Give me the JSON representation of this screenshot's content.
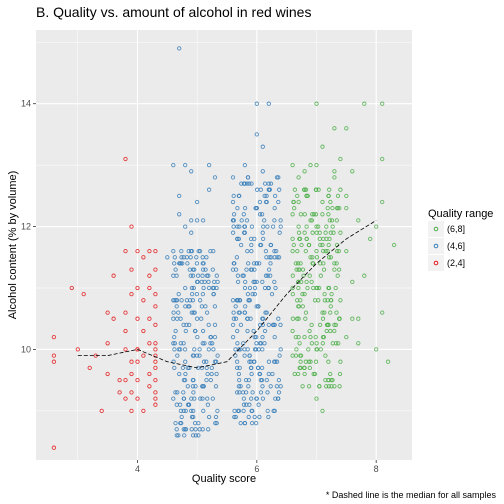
{
  "chart_data": {
    "type": "scatter",
    "title": "B. Quality vs. amount of alcohol in red wines",
    "xlabel": "Quality score",
    "ylabel": "Alcohol content (% by volume)",
    "caption": "* Dashed line is the median for all samples",
    "xlim": [
      2.3,
      8.6
    ],
    "ylim": [
      8.2,
      15.2
    ],
    "x_ticks": [
      4,
      6,
      8
    ],
    "y_ticks": [
      10,
      12,
      14
    ],
    "grid": true,
    "jitter": "points horizontally jittered around integer quality scores",
    "legend": {
      "title": "Quality range",
      "position": "right",
      "entries": [
        {
          "label": "(6,8]",
          "color": "#4daf4a"
        },
        {
          "label": "(4,6]",
          "color": "#377eb8"
        },
        {
          "label": "(2,4]",
          "color": "#e41a1c"
        }
      ]
    },
    "series": [
      {
        "label": "(2,4]",
        "color": "#e41a1c",
        "points": [
          [
            2.6,
            8.4
          ],
          [
            2.6,
            9.8
          ],
          [
            2.6,
            9.9
          ],
          [
            2.6,
            10.2
          ],
          [
            2.9,
            11.0
          ],
          [
            3.0,
            10.0
          ],
          [
            3.1,
            10.9
          ],
          [
            3.2,
            9.7
          ],
          [
            3.3,
            9.9
          ],
          [
            3.4,
            9.0
          ],
          [
            3.5,
            10.1
          ],
          [
            3.5,
            9.6
          ],
          [
            3.5,
            10.6
          ],
          [
            3.6,
            10.5
          ],
          [
            3.6,
            11.2
          ],
          [
            3.7,
            9.5
          ],
          [
            3.7,
            9.3
          ],
          [
            3.8,
            9.2
          ],
          [
            3.8,
            9.5
          ],
          [
            3.8,
            13.1
          ],
          [
            3.8,
            10.0
          ],
          [
            3.8,
            10.3
          ],
          [
            3.8,
            10.6
          ],
          [
            3.8,
            11.6
          ],
          [
            3.9,
            9.0
          ],
          [
            3.9,
            9.3
          ],
          [
            3.9,
            10.9
          ],
          [
            3.9,
            11.3
          ],
          [
            3.9,
            9.8
          ],
          [
            4.0,
            9.2
          ],
          [
            4.0,
            9.5
          ],
          [
            4.0,
            10.0
          ],
          [
            4.0,
            10.5
          ],
          [
            4.0,
            11.0
          ],
          [
            4.0,
            11.6
          ],
          [
            4.0,
            10.0
          ],
          [
            4.0,
            9.8
          ],
          [
            4.1,
            10.3
          ],
          [
            4.1,
            9.0
          ],
          [
            4.1,
            9.9
          ],
          [
            4.1,
            11.5
          ],
          [
            4.1,
            10.8
          ],
          [
            4.2,
            9.6
          ],
          [
            4.2,
            10.1
          ],
          [
            4.2,
            11.2
          ],
          [
            4.2,
            9.4
          ],
          [
            4.2,
            10.5
          ],
          [
            4.2,
            11.0
          ],
          [
            4.3,
            9.9
          ],
          [
            4.3,
            10.4
          ],
          [
            4.3,
            9.5
          ],
          [
            4.3,
            10.7
          ],
          [
            4.3,
            11.3
          ],
          [
            4.3,
            9.2
          ],
          [
            4.3,
            10.1
          ],
          [
            4.3,
            11.6
          ],
          [
            4.3,
            10.0
          ],
          [
            4.3,
            9.7
          ],
          [
            4.3,
            9.3
          ],
          [
            4.3,
            10.9
          ],
          [
            3.9,
            12.0
          ],
          [
            4.2,
            11.6
          ],
          [
            3.9,
            9.6
          ],
          [
            4.3,
            9.1
          ],
          [
            4.3,
            9.8
          ]
        ]
      },
      {
        "label": "(4,6]",
        "color": "#377eb8",
        "points": [
          [
            4.7,
            14.9
          ],
          [
            4.6,
            13.0
          ],
          [
            4.8,
            13.0
          ],
          [
            4.9,
            12.9
          ],
          [
            4.8,
            12.0
          ],
          [
            4.9,
            11.9
          ],
          [
            4.6,
            11.6
          ],
          [
            4.5,
            11.5
          ],
          [
            4.6,
            11.2
          ],
          [
            4.7,
            11.4
          ],
          [
            4.8,
            11.0
          ],
          [
            5.0,
            11.1
          ],
          [
            5.1,
            11.3
          ],
          [
            5.2,
            11.0
          ],
          [
            4.6,
            10.8
          ],
          [
            5.0,
            10.5
          ],
          [
            5.3,
            10.4
          ],
          [
            5.1,
            10.3
          ],
          [
            5.3,
            10.2
          ],
          [
            4.6,
            10.1
          ],
          [
            5.1,
            12.1
          ],
          [
            5.2,
            13.0
          ],
          [
            4.7,
            12.5
          ],
          [
            4.9,
            12.1
          ],
          [
            5.0,
            12.4
          ],
          [
            4.7,
            12.2
          ],
          [
            5.2,
            12.6
          ],
          [
            5.0,
            12.1
          ],
          [
            5.3,
            12.8
          ],
          [
            6.0,
            14.0
          ],
          [
            6.2,
            14.0
          ],
          [
            6.0,
            13.5
          ],
          [
            6.1,
            13.3
          ],
          [
            5.8,
            13.0
          ],
          [
            6.1,
            12.9
          ],
          [
            5.6,
            12.4
          ],
          [
            6.2,
            12.7
          ],
          [
            5.7,
            12.5
          ],
          [
            6.3,
            12.3
          ],
          [
            5.6,
            12.1
          ],
          [
            6.0,
            12.3
          ],
          [
            6.2,
            12.6
          ],
          [
            5.8,
            12.0
          ],
          [
            6.4,
            12.0
          ],
          [
            5.7,
            11.8
          ],
          [
            6.3,
            11.5
          ],
          [
            6.0,
            11.4
          ],
          [
            5.9,
            11.3
          ],
          [
            6.2,
            11.0
          ],
          [
            5.6,
            10.8
          ],
          [
            5.8,
            10.6
          ],
          [
            6.1,
            10.4
          ],
          [
            6.3,
            10.2
          ],
          [
            5.7,
            10.0
          ],
          [
            6.4,
            10.0
          ],
          [
            5.9,
            9.8
          ],
          [
            6.2,
            9.6
          ],
          [
            5.7,
            9.4
          ],
          [
            6.4,
            9.4
          ],
          [
            6.0,
            9.2
          ],
          [
            6.3,
            9.0
          ],
          [
            5.8,
            8.8
          ],
          [
            4.6,
            9.2
          ],
          [
            4.9,
            9.0
          ],
          [
            5.2,
            8.9
          ],
          [
            4.8,
            8.7
          ],
          [
            5.1,
            9.4
          ],
          [
            4.7,
            9.6
          ],
          [
            5.3,
            9.8
          ],
          [
            5.0,
            9.9
          ]
        ],
        "dense_bands": [
          {
            "x_range": [
              4.6,
              5.35
            ],
            "y_range": [
              8.6,
              11.6
            ],
            "spacing_y": 0.1
          },
          {
            "x_range": [
              5.6,
              6.4
            ],
            "y_range": [
              8.8,
              12.8
            ],
            "spacing_y": 0.1
          }
        ]
      },
      {
        "label": "(6,8]",
        "color": "#4daf4a",
        "points": [
          [
            7.0,
            14.0
          ],
          [
            7.8,
            14.0
          ],
          [
            8.1,
            14.0
          ],
          [
            7.3,
            13.6
          ],
          [
            7.5,
            13.6
          ],
          [
            7.1,
            13.3
          ],
          [
            6.6,
            13.0
          ],
          [
            7.0,
            13.0
          ],
          [
            7.4,
            13.1
          ],
          [
            6.9,
            13.0
          ],
          [
            8.1,
            13.1
          ],
          [
            7.6,
            12.9
          ],
          [
            6.7,
            12.8
          ],
          [
            7.3,
            12.8
          ],
          [
            6.8,
            12.6
          ],
          [
            7.2,
            12.5
          ],
          [
            7.5,
            12.5
          ],
          [
            8.1,
            12.4
          ],
          [
            6.6,
            12.2
          ],
          [
            7.2,
            12.2
          ],
          [
            7.7,
            12.1
          ],
          [
            7.0,
            12.0
          ],
          [
            7.4,
            11.9
          ],
          [
            6.8,
            11.9
          ],
          [
            6.6,
            11.8
          ],
          [
            7.1,
            11.7
          ],
          [
            7.9,
            11.8
          ],
          [
            8.3,
            11.7
          ],
          [
            6.9,
            11.5
          ],
          [
            7.3,
            11.4
          ],
          [
            7.8,
            11.2
          ],
          [
            6.6,
            11.0
          ],
          [
            7.0,
            11.0
          ],
          [
            7.6,
            11.1
          ],
          [
            6.8,
            10.9
          ],
          [
            7.4,
            10.8
          ],
          [
            7.1,
            10.6
          ],
          [
            8.1,
            10.6
          ],
          [
            6.7,
            10.5
          ],
          [
            7.2,
            10.4
          ],
          [
            6.9,
            10.2
          ],
          [
            7.5,
            10.2
          ],
          [
            7.0,
            10.0
          ],
          [
            7.7,
            10.1
          ],
          [
            8.0,
            10.0
          ],
          [
            6.6,
            9.9
          ],
          [
            7.2,
            9.8
          ],
          [
            6.8,
            9.6
          ],
          [
            7.3,
            9.4
          ],
          [
            7.0,
            9.2
          ],
          [
            7.1,
            9.0
          ],
          [
            7.4,
            9.8
          ],
          [
            7.6,
            10.5
          ],
          [
            6.6,
            11.6
          ],
          [
            6.9,
            12.1
          ],
          [
            7.3,
            12.9
          ],
          [
            6.7,
            11.3
          ],
          [
            7.5,
            11.6
          ],
          [
            8.2,
            9.8
          ],
          [
            8.0,
            12.0
          ],
          [
            6.7,
            12.0
          ],
          [
            7.1,
            12.4
          ],
          [
            6.8,
            12.9
          ],
          [
            7.4,
            12.6
          ],
          [
            6.6,
            10.3
          ],
          [
            7.2,
            11.0
          ],
          [
            7.7,
            10.5
          ],
          [
            6.9,
            9.8
          ],
          [
            7.5,
            12.3
          ],
          [
            7.0,
            11.6
          ]
        ],
        "dense_bands": [
          {
            "x_range": [
              6.6,
              7.4
            ],
            "y_range": [
              9.4,
              12.6
            ],
            "spacing_y": 0.1
          }
        ]
      }
    ],
    "median_line": {
      "style": "dashed",
      "color": "#000000",
      "points": [
        [
          3.0,
          9.9
        ],
        [
          3.5,
          9.9
        ],
        [
          4.0,
          10.0
        ],
        [
          4.5,
          9.8
        ],
        [
          5.0,
          9.7
        ],
        [
          5.5,
          9.8
        ],
        [
          6.0,
          10.3
        ],
        [
          6.5,
          10.9
        ],
        [
          7.0,
          11.4
        ],
        [
          7.5,
          11.8
        ],
        [
          8.0,
          12.1
        ]
      ]
    }
  }
}
